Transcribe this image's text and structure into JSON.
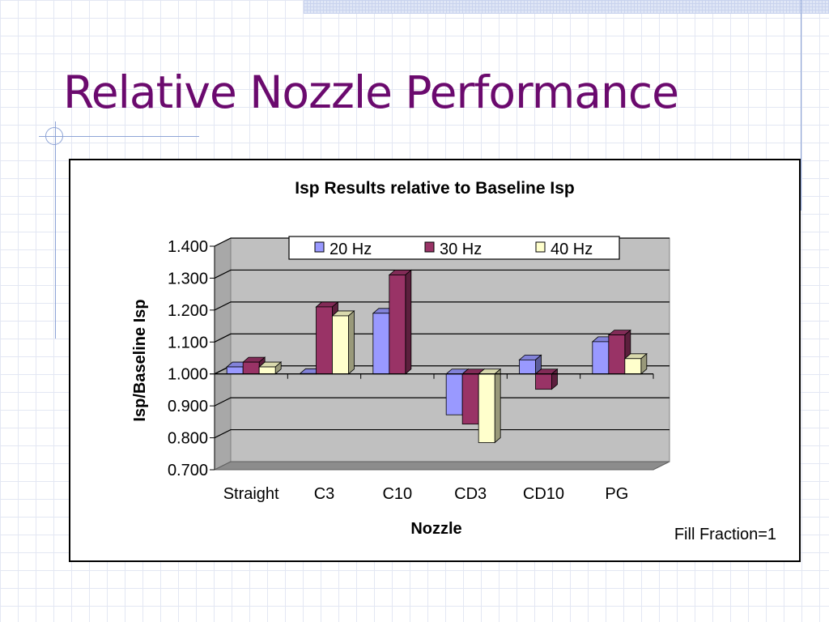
{
  "slide": {
    "title": "Relative Nozzle Performance"
  },
  "chart_data": {
    "type": "bar",
    "title": "Isp Results relative to Baseline Isp",
    "xlabel": "Nozzle",
    "ylabel": "Isp/Baseline Isp",
    "ylim": [
      0.7,
      1.4
    ],
    "ytick_step": 0.1,
    "yticks": [
      "1.400",
      "1.300",
      "1.200",
      "1.100",
      "1.000",
      "0.900",
      "0.800",
      "0.700"
    ],
    "baseline": 1.0,
    "categories": [
      "Straight",
      "C3",
      "C10",
      "CD3",
      "CD10",
      "PG"
    ],
    "series": [
      {
        "name": "20 Hz",
        "values": [
          1.022,
          1.001,
          1.19,
          0.872,
          1.044,
          1.101
        ],
        "color": "#9999ff"
      },
      {
        "name": "30 Hz",
        "values": [
          1.037,
          1.21,
          1.31,
          0.843,
          0.952,
          1.122
        ],
        "color": "#993366"
      },
      {
        "name": "40 Hz",
        "values": [
          1.022,
          1.182,
          null,
          0.785,
          null,
          1.048
        ],
        "color": "#ffffcc"
      }
    ],
    "grid": true,
    "legend": "top",
    "annotation": "Fill Fraction=1"
  }
}
